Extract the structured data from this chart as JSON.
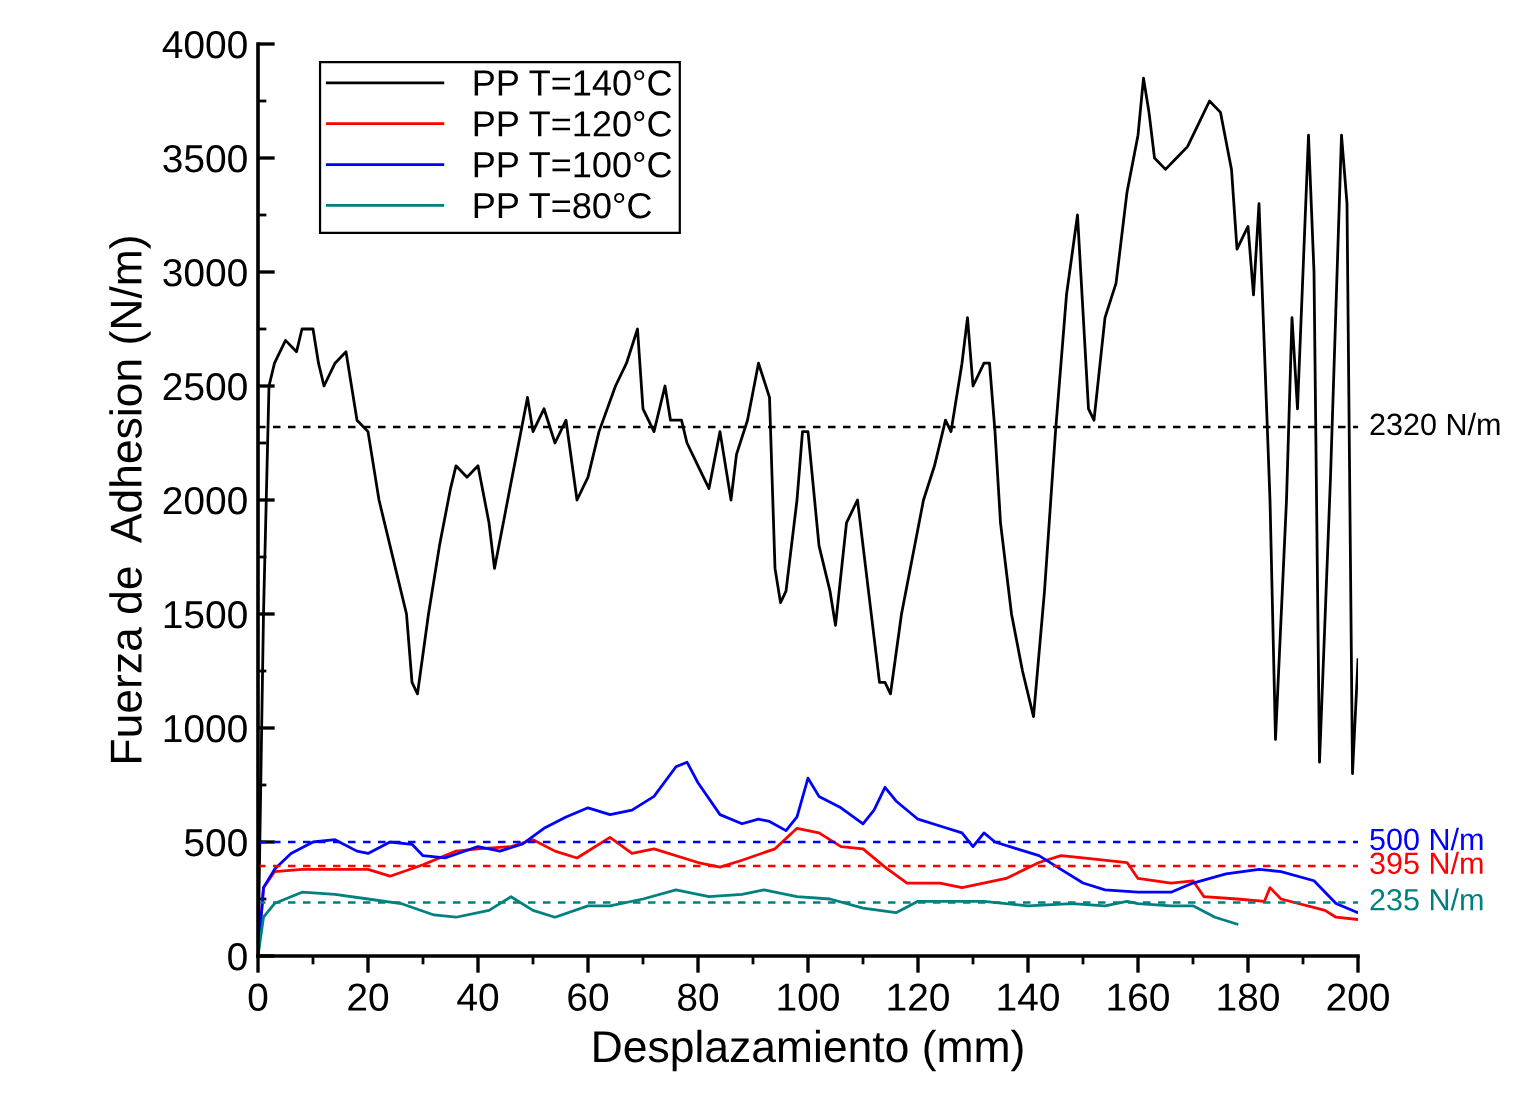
{
  "chart_data": {
    "type": "line",
    "xlabel": "Desplazamiento (mm)",
    "ylabel": "Fuerza de  Adhesion (N/m)",
    "xlim": [
      0,
      200
    ],
    "ylim": [
      0,
      4000
    ],
    "xticks": [
      0,
      20,
      40,
      60,
      80,
      100,
      120,
      140,
      160,
      180,
      200
    ],
    "yticks": [
      0,
      500,
      1000,
      1500,
      2000,
      2500,
      3000,
      3500,
      4000
    ],
    "grid": false,
    "legend": "top left",
    "marker": "none",
    "line_style": "solid",
    "series": [
      {
        "name": "PP T=140°C",
        "color": "#000000",
        "x": [
          0,
          1,
          2,
          3,
          5,
          7,
          8,
          10,
          11,
          12,
          14,
          16,
          18,
          20,
          22,
          25,
          27,
          28,
          29,
          31,
          33,
          35,
          36,
          38,
          40,
          42,
          43,
          45,
          47,
          49,
          50,
          52,
          54,
          56,
          58,
          60,
          62,
          65,
          67,
          69,
          70,
          72,
          74,
          75,
          77,
          78,
          80,
          82,
          84,
          86,
          87,
          89,
          91,
          93,
          94,
          95,
          96,
          98,
          99,
          100,
          102,
          104,
          105,
          107,
          109,
          111,
          113,
          114,
          115,
          117,
          119,
          121,
          123,
          125,
          126,
          128,
          129,
          130,
          132,
          133,
          134,
          135,
          137,
          139,
          141,
          143,
          145,
          147,
          149,
          151,
          152,
          154,
          156,
          158,
          160,
          161,
          162,
          163,
          165,
          167,
          169,
          171,
          173,
          175,
          177,
          178,
          180,
          181,
          182,
          184,
          185,
          187,
          188,
          189,
          191,
          192,
          193,
          195,
          197,
          198,
          199,
          200
        ],
        "values": [
          0,
          1500,
          2500,
          2600,
          2700,
          2650,
          2750,
          2750,
          2600,
          2500,
          2600,
          2650,
          2350,
          2300,
          2000,
          1700,
          1500,
          1200,
          1150,
          1500,
          1800,
          2050,
          2150,
          2100,
          2150,
          1900,
          1700,
          1950,
          2200,
          2450,
          2300,
          2400,
          2250,
          2350,
          2000,
          2100,
          2300,
          2500,
          2600,
          2750,
          2400,
          2300,
          2500,
          2350,
          2350,
          2250,
          2150,
          2050,
          2300,
          2000,
          2200,
          2350,
          2600,
          2450,
          1700,
          1550,
          1600,
          2000,
          2300,
          2300,
          1800,
          1600,
          1450,
          1900,
          2000,
          1600,
          1200,
          1200,
          1150,
          1500,
          1750,
          2000,
          2150,
          2350,
          2300,
          2600,
          2800,
          2500,
          2600,
          2600,
          2300,
          1900,
          1500,
          1250,
          1050,
          1600,
          2300,
          2900,
          3250,
          2400,
          2350,
          2800,
          2950,
          3350,
          3600,
          3850,
          3700,
          3500,
          3450,
          3500,
          3550,
          3650,
          3750,
          3700,
          3450,
          3100,
          3200,
          2900,
          3300,
          2000,
          950,
          2000,
          2800,
          2400,
          3600,
          3000,
          850,
          2100,
          3600,
          3300,
          800,
          1300
        ]
      },
      {
        "name": "PP T=120°C",
        "color": "#ff0000",
        "x": [
          0,
          1,
          3,
          8,
          14,
          20,
          24,
          30,
          36,
          40,
          46,
          50,
          54,
          58,
          64,
          68,
          72,
          80,
          84,
          88,
          94,
          98,
          102,
          106,
          110,
          114,
          118,
          124,
          128,
          136,
          142,
          146,
          150,
          158,
          160,
          166,
          170,
          172,
          178,
          183,
          184,
          186,
          194,
          196,
          200
        ],
        "values": [
          0,
          300,
          370,
          380,
          380,
          380,
          350,
          400,
          460,
          470,
          480,
          510,
          460,
          430,
          520,
          450,
          470,
          410,
          390,
          420,
          470,
          560,
          540,
          480,
          470,
          390,
          320,
          320,
          300,
          340,
          410,
          440,
          430,
          410,
          340,
          320,
          330,
          260,
          250,
          240,
          300,
          250,
          200,
          170,
          160
        ]
      },
      {
        "name": "PP T=100°C",
        "color": "#0000ff",
        "x": [
          0,
          1,
          3,
          6,
          10,
          14,
          18,
          20,
          24,
          28,
          30,
          34,
          40,
          44,
          48,
          52,
          56,
          60,
          64,
          68,
          72,
          76,
          78,
          80,
          84,
          88,
          91,
          93,
          96,
          98,
          100,
          102,
          106,
          110,
          112,
          114,
          116,
          120,
          124,
          128,
          130,
          132,
          134,
          138,
          142,
          146,
          150,
          154,
          160,
          166,
          170,
          176,
          182,
          186,
          192,
          196,
          200
        ],
        "values": [
          0,
          300,
          380,
          450,
          500,
          510,
          460,
          450,
          500,
          490,
          440,
          430,
          480,
          460,
          490,
          560,
          610,
          650,
          620,
          640,
          700,
          830,
          850,
          760,
          620,
          580,
          600,
          590,
          550,
          610,
          780,
          700,
          650,
          580,
          640,
          740,
          680,
          600,
          570,
          540,
          480,
          540,
          500,
          470,
          440,
          380,
          320,
          290,
          280,
          280,
          320,
          360,
          380,
          370,
          330,
          230,
          190
        ]
      },
      {
        "name": "PP T=80°C",
        "color": "#008080",
        "x": [
          0,
          1,
          3,
          8,
          14,
          20,
          26,
          32,
          36,
          42,
          46,
          50,
          54,
          60,
          64,
          70,
          76,
          82,
          88,
          92,
          98,
          104,
          110,
          116,
          120,
          126,
          132,
          140,
          148,
          154,
          158,
          160,
          166,
          170,
          174,
          178
        ],
        "values": [
          0,
          170,
          230,
          280,
          270,
          250,
          230,
          180,
          170,
          200,
          260,
          200,
          170,
          220,
          220,
          250,
          290,
          260,
          270,
          290,
          260,
          250,
          210,
          190,
          240,
          240,
          240,
          220,
          230,
          220,
          240,
          230,
          220,
          220,
          170,
          140
        ]
      }
    ],
    "ref_lines": [
      {
        "axis": "y",
        "value": 2320,
        "label": "2320 N/m",
        "color": "#000000",
        "line_style": "dashed"
      },
      {
        "axis": "y",
        "value": 500,
        "label": "500 N/m",
        "color": "#0000ff",
        "line_style": "dashed"
      },
      {
        "axis": "y",
        "value": 395,
        "label": "395 N/m",
        "color": "#ff0000",
        "line_style": "dashed"
      },
      {
        "axis": "y",
        "value": 235,
        "label": "235 N/m",
        "color": "#008080",
        "line_style": "dashed"
      }
    ]
  }
}
